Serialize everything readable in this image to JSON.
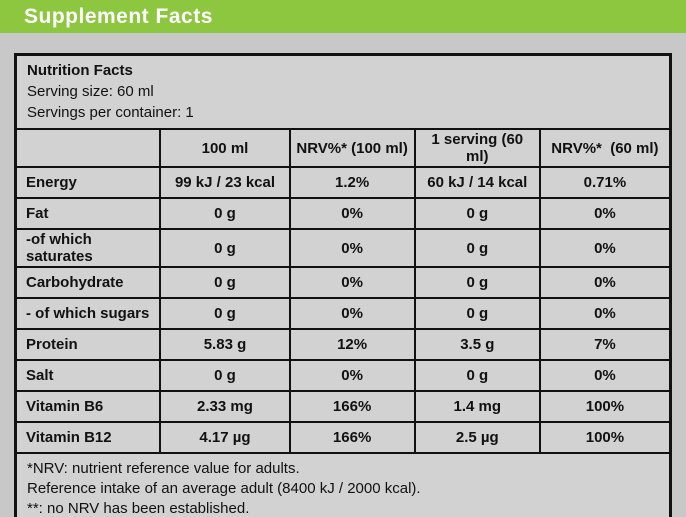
{
  "header": {
    "title": "Supplement Facts"
  },
  "colors": {
    "header_bar_green": "#8dc63f",
    "header_title_text": "#ffffff",
    "page_background": "#c8c8c8",
    "table_background": "#d2d2d2",
    "border_and_text": "#111111"
  },
  "info": {
    "title": "Nutrition Facts",
    "serving_size": "Serving size: 60 ml",
    "servings_per_container": "Servings per container: 1"
  },
  "table": {
    "columns": [
      "",
      "100 ml",
      "NRV%* (100 ml)",
      "1 serving (60 ml)",
      "NRV%*  (60 ml)"
    ],
    "rows": [
      {
        "name": "Energy",
        "per_100ml": "99 kJ / 23 kcal",
        "nrv_100ml": "1.2%",
        "per_serving": "60 kJ / 14 kcal",
        "nrv_serving": "0.71%"
      },
      {
        "name": "Fat",
        "per_100ml": "0 g",
        "nrv_100ml": "0%",
        "per_serving": "0 g",
        "nrv_serving": "0%"
      },
      {
        "name": "-of which saturates",
        "per_100ml": "0 g",
        "nrv_100ml": "0%",
        "per_serving": "0 g",
        "nrv_serving": "0%"
      },
      {
        "name": "Carbohydrate",
        "per_100ml": "0 g",
        "nrv_100ml": "0%",
        "per_serving": "0 g",
        "nrv_serving": "0%"
      },
      {
        "name": "- of which sugars",
        "per_100ml": "0 g",
        "nrv_100ml": "0%",
        "per_serving": "0 g",
        "nrv_serving": "0%"
      },
      {
        "name": "Protein",
        "per_100ml": "5.83 g",
        "nrv_100ml": "12%",
        "per_serving": "3.5 g",
        "nrv_serving": "7%"
      },
      {
        "name": "Salt",
        "per_100ml": "0 g",
        "nrv_100ml": "0%",
        "per_serving": "0 g",
        "nrv_serving": "0%"
      },
      {
        "name": "Vitamin B6",
        "per_100ml": "2.33 mg",
        "nrv_100ml": "166%",
        "per_serving": "1.4 mg",
        "nrv_serving": "100%"
      },
      {
        "name": "Vitamin B12",
        "per_100ml": "4.17 µg",
        "nrv_100ml": "166%",
        "per_serving": "2.5 µg",
        "nrv_serving": "100%"
      }
    ]
  },
  "footnotes": [
    "*NRV: nutrient reference value for adults.",
    "Reference intake of an average adult (8400 kJ / 2000 kcal).",
    "**: no NRV has been established."
  ]
}
